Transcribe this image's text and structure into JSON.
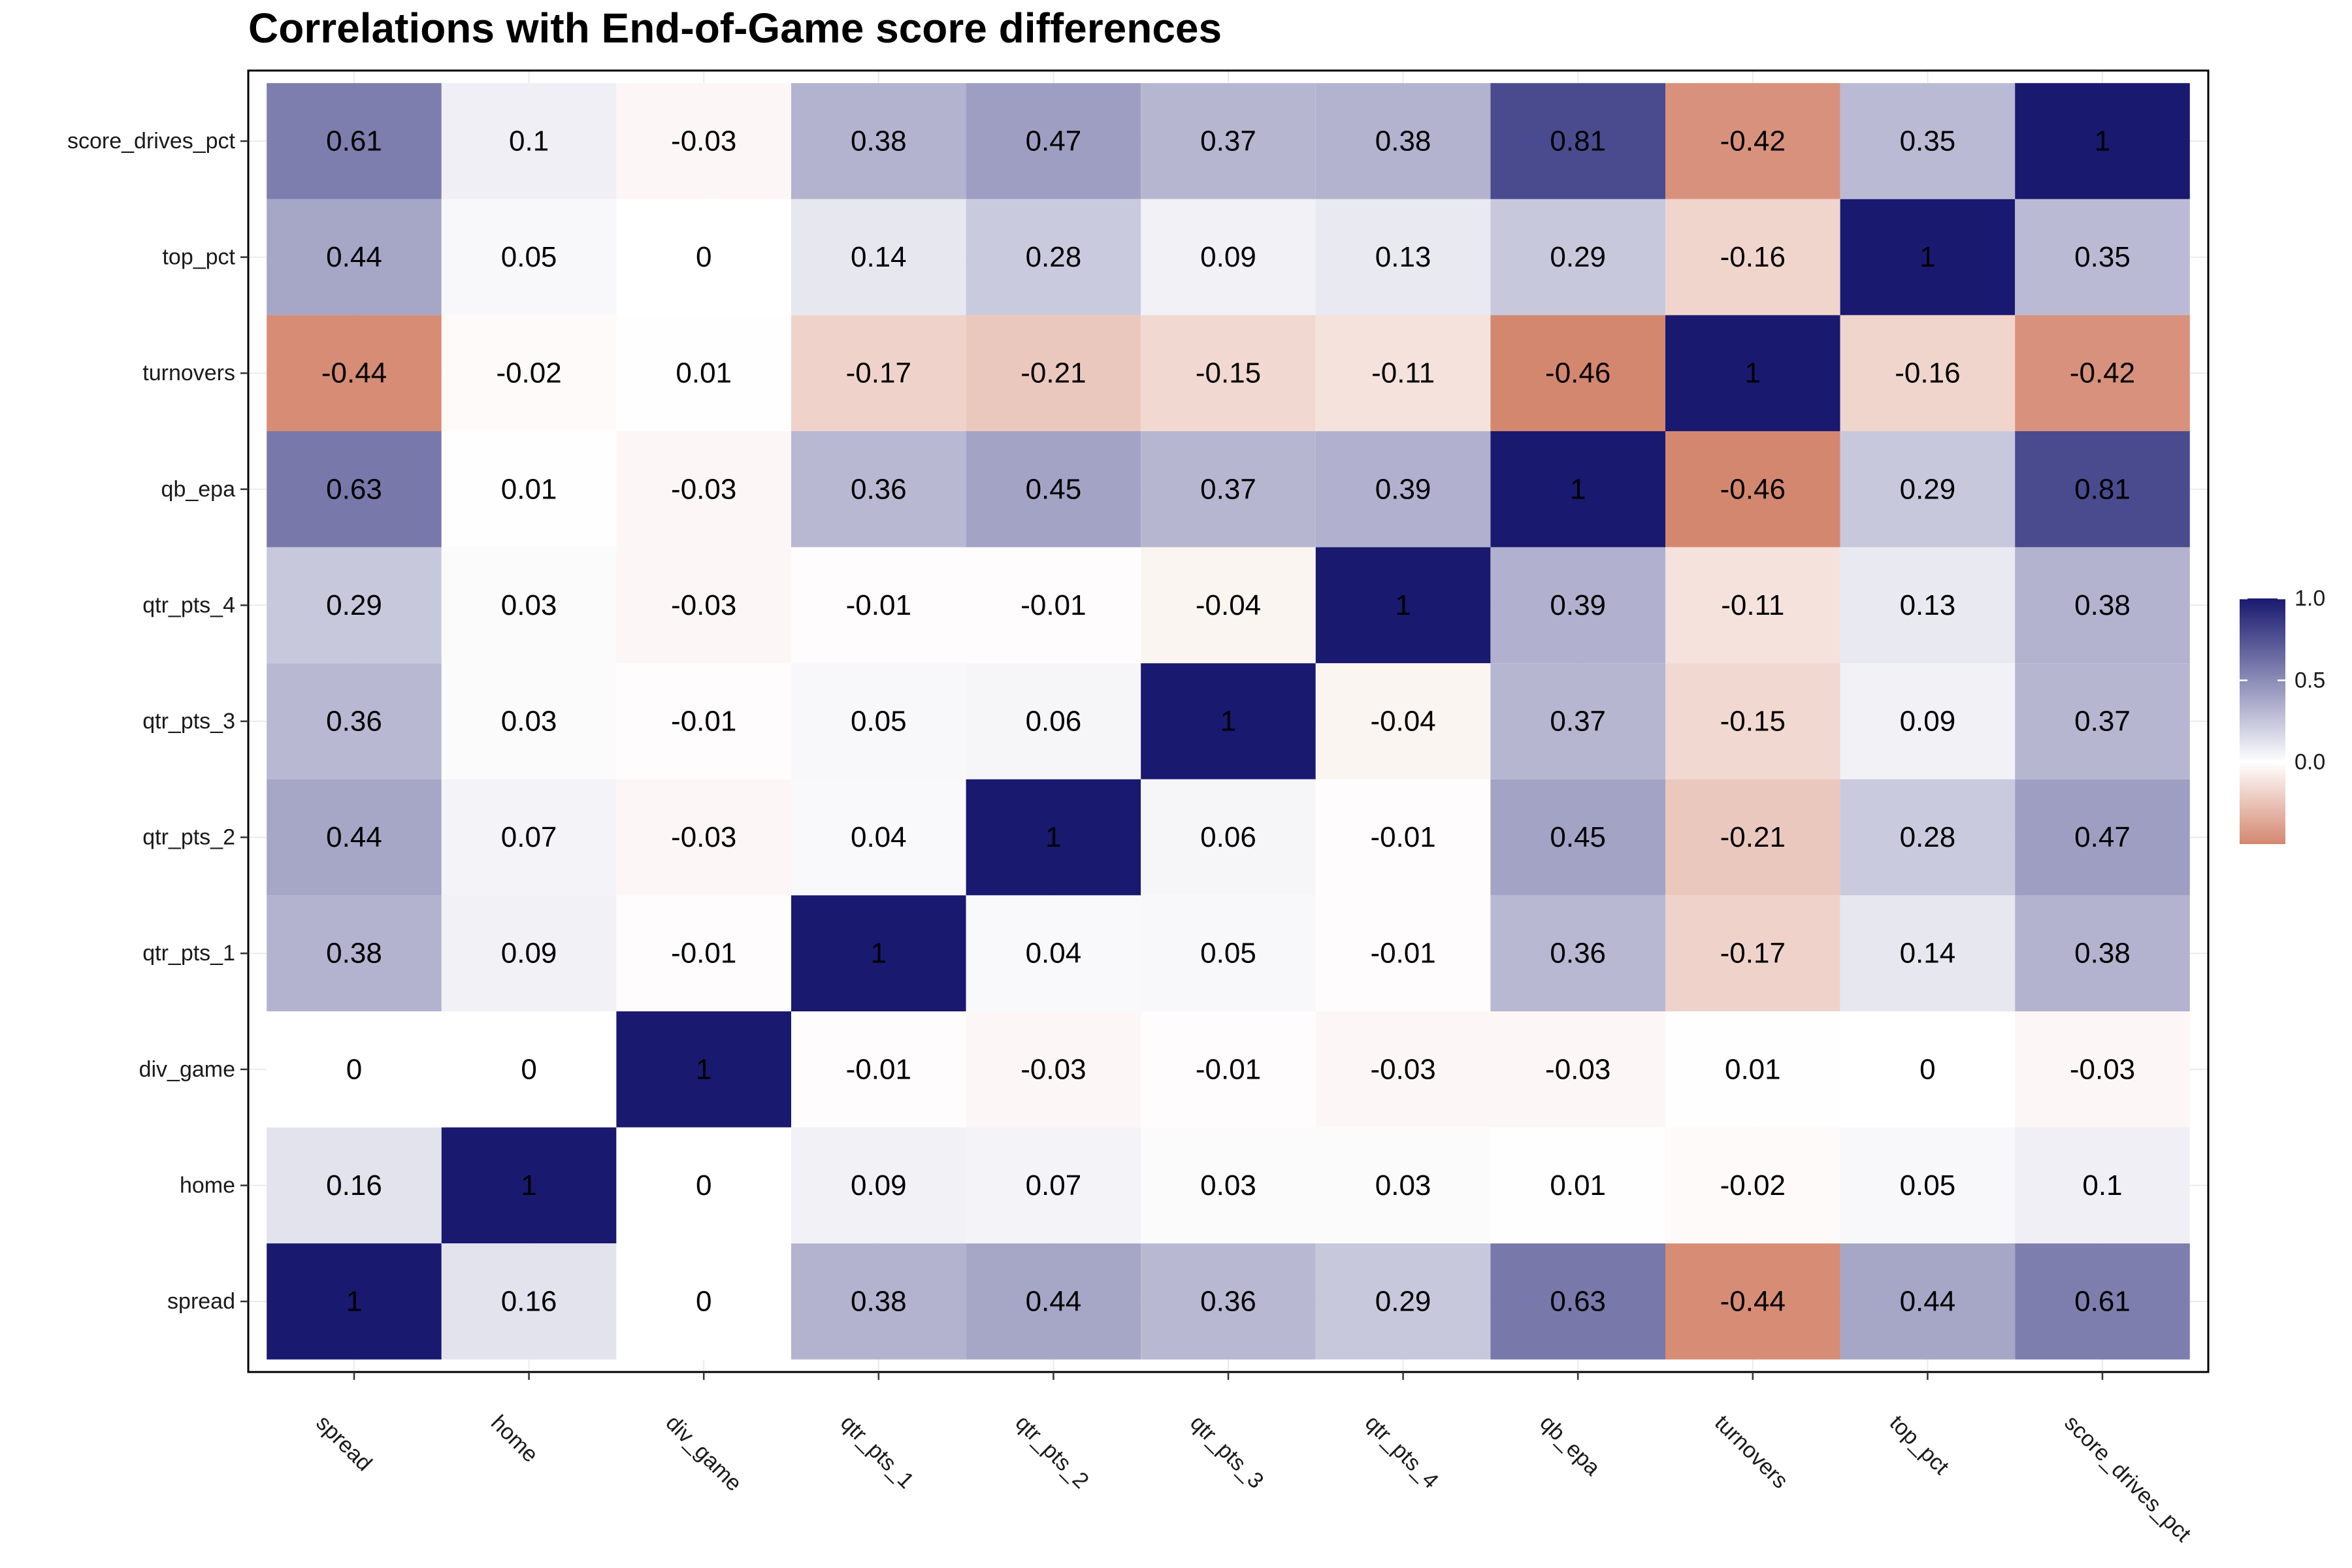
{
  "chart_data": {
    "type": "heatmap",
    "title": "Correlations with End-of-Game score differences",
    "x_categories": [
      "spread",
      "home",
      "div_game",
      "qtr_pts_1",
      "qtr_pts_2",
      "qtr_pts_3",
      "qtr_pts_4",
      "qb_epa",
      "turnovers",
      "top_pct",
      "score_drives_pct"
    ],
    "y_categories_top_to_bottom": [
      "score_drives_pct",
      "top_pct",
      "turnovers",
      "qb_epa",
      "qtr_pts_4",
      "qtr_pts_3",
      "qtr_pts_2",
      "qtr_pts_1",
      "div_game",
      "home",
      "spread"
    ],
    "values_top_to_bottom": [
      [
        0.61,
        0.1,
        -0.03,
        0.38,
        0.47,
        0.37,
        0.38,
        0.81,
        -0.42,
        0.35,
        1
      ],
      [
        0.44,
        0.05,
        0,
        0.14,
        0.28,
        0.09,
        0.13,
        0.29,
        -0.16,
        1,
        0.35
      ],
      [
        -0.44,
        -0.02,
        0.01,
        -0.17,
        -0.21,
        -0.15,
        -0.11,
        -0.46,
        1,
        -0.16,
        -0.42
      ],
      [
        0.63,
        0.01,
        -0.03,
        0.36,
        0.45,
        0.37,
        0.39,
        1,
        -0.46,
        0.29,
        0.81
      ],
      [
        0.29,
        0.03,
        -0.03,
        -0.01,
        -0.01,
        -0.04,
        1,
        0.39,
        -0.11,
        0.13,
        0.38
      ],
      [
        0.36,
        0.03,
        -0.01,
        0.05,
        0.06,
        1,
        -0.04,
        0.37,
        -0.15,
        0.09,
        0.37
      ],
      [
        0.44,
        0.07,
        -0.03,
        0.04,
        1,
        0.06,
        -0.01,
        0.45,
        -0.21,
        0.28,
        0.47
      ],
      [
        0.38,
        0.09,
        -0.01,
        1,
        0.04,
        0.05,
        -0.01,
        0.36,
        -0.17,
        0.14,
        0.38
      ],
      [
        0,
        0,
        1,
        -0.01,
        -0.03,
        -0.01,
        -0.03,
        -0.03,
        0.01,
        0,
        -0.03
      ],
      [
        0.16,
        1,
        0,
        0.09,
        0.07,
        0.03,
        0.03,
        0.01,
        -0.02,
        0.05,
        0.1
      ],
      [
        1,
        0.16,
        0,
        0.38,
        0.44,
        0.36,
        0.29,
        0.63,
        -0.44,
        0.44,
        0.61
      ]
    ],
    "legend": {
      "position": "right",
      "ticks": [
        "1.0",
        "0.5",
        "0.0"
      ],
      "range": [
        -0.5,
        1.0
      ],
      "low_color": "#d4876f",
      "mid_color": "#ffffff",
      "high_color": "#191970"
    },
    "grid": true
  }
}
